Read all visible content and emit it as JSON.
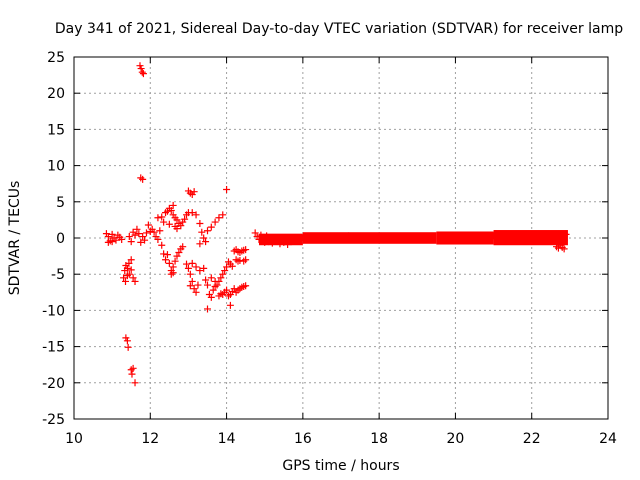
{
  "chart_data": {
    "type": "scatter",
    "title": "Day 341 of 2021, Sidereal Day-to-day VTEC variation (SDTVAR) for receiver lamp",
    "xlabel": "GPS time / hours",
    "ylabel": "SDTVAR / TECUs",
    "xlim": [
      10,
      24
    ],
    "ylim": [
      -25,
      25
    ],
    "xticks": [
      10,
      12,
      14,
      16,
      18,
      20,
      22,
      24
    ],
    "yticks": [
      -25,
      -20,
      -15,
      -10,
      -5,
      0,
      5,
      10,
      15,
      20,
      25
    ],
    "grid": true,
    "marker": "+",
    "color": "#ff0000",
    "series": [
      {
        "name": "SDTVAR",
        "points": [
          [
            10.85,
            0.6
          ],
          [
            10.9,
            0.2
          ],
          [
            10.95,
            -0.4
          ],
          [
            11.0,
            0.5
          ],
          [
            11.05,
            0.0
          ],
          [
            11.1,
            -0.3
          ],
          [
            11.15,
            0.4
          ],
          [
            11.2,
            0.1
          ],
          [
            11.25,
            -0.2
          ],
          [
            10.9,
            -0.6
          ],
          [
            11.0,
            -0.5
          ],
          [
            11.3,
            -5.5
          ],
          [
            11.33,
            -4.5
          ],
          [
            11.36,
            -3.8
          ],
          [
            11.4,
            -4.2
          ],
          [
            11.44,
            -3.5
          ],
          [
            11.35,
            -6.0
          ],
          [
            11.4,
            -5.2
          ],
          [
            11.45,
            -5.0
          ],
          [
            11.5,
            -4.4
          ],
          [
            11.55,
            -5.5
          ],
          [
            11.6,
            -6.0
          ],
          [
            11.5,
            -3.0
          ],
          [
            11.55,
            0.8
          ],
          [
            11.6,
            0.4
          ],
          [
            11.65,
            1.2
          ],
          [
            11.7,
            0.6
          ],
          [
            11.75,
            -0.6
          ],
          [
            11.8,
            0.2
          ],
          [
            11.85,
            -0.3
          ],
          [
            11.9,
            0.7
          ],
          [
            11.45,
            0.2
          ],
          [
            11.5,
            -0.5
          ],
          [
            11.36,
            -13.8
          ],
          [
            11.4,
            -14.2
          ],
          [
            11.42,
            -15.1
          ],
          [
            11.5,
            -18.2
          ],
          [
            11.52,
            -18.8
          ],
          [
            11.55,
            -18.0
          ],
          [
            11.6,
            -20.0
          ],
          [
            11.73,
            23.8
          ],
          [
            11.76,
            23.4
          ],
          [
            11.79,
            22.9
          ],
          [
            11.82,
            22.7
          ],
          [
            11.75,
            8.3
          ],
          [
            11.8,
            8.1
          ],
          [
            11.95,
            1.8
          ],
          [
            12.05,
            1.2
          ],
          [
            12.1,
            0.8
          ],
          [
            12.15,
            0.2
          ],
          [
            12.2,
            -0.2
          ],
          [
            12.25,
            1.0
          ],
          [
            12.0,
            0.9
          ],
          [
            12.2,
            2.8
          ],
          [
            12.3,
            2.9
          ],
          [
            12.35,
            2.2
          ],
          [
            12.4,
            3.5
          ],
          [
            12.45,
            3.7
          ],
          [
            12.5,
            4.1
          ],
          [
            12.55,
            3.8
          ],
          [
            12.6,
            3.2
          ],
          [
            12.65,
            2.8
          ],
          [
            12.7,
            2.5
          ],
          [
            12.75,
            2.0
          ],
          [
            12.8,
            1.7
          ],
          [
            12.85,
            2.2
          ],
          [
            12.9,
            2.6
          ],
          [
            12.95,
            3.2
          ],
          [
            13.0,
            3.5
          ],
          [
            12.6,
            4.5
          ],
          [
            12.65,
            1.6
          ],
          [
            12.7,
            1.3
          ],
          [
            12.5,
            1.9
          ],
          [
            12.3,
            -1.0
          ],
          [
            12.35,
            -2.2
          ],
          [
            12.4,
            -3.0
          ],
          [
            12.45,
            -2.3
          ],
          [
            12.5,
            -3.5
          ],
          [
            12.55,
            -4.5
          ],
          [
            12.6,
            -4.0
          ],
          [
            12.65,
            -3.2
          ],
          [
            12.7,
            -2.5
          ],
          [
            12.75,
            -2.0
          ],
          [
            12.8,
            -1.5
          ],
          [
            12.85,
            -1.2
          ],
          [
            12.55,
            -5.0
          ],
          [
            12.6,
            -4.8
          ],
          [
            12.95,
            -3.6
          ],
          [
            13.0,
            -4.2
          ],
          [
            13.05,
            -5.0
          ],
          [
            13.1,
            -6.0
          ],
          [
            13.15,
            -7.0
          ],
          [
            13.2,
            -7.5
          ],
          [
            13.25,
            -6.5
          ],
          [
            13.3,
            -4.5
          ],
          [
            13.1,
            -3.5
          ],
          [
            13.2,
            -4.0
          ],
          [
            13.05,
            -6.6
          ],
          [
            13.0,
            6.5
          ],
          [
            13.05,
            6.2
          ],
          [
            13.1,
            6.0
          ],
          [
            13.15,
            6.4
          ],
          [
            13.1,
            3.5
          ],
          [
            13.2,
            3.2
          ],
          [
            13.3,
            2.0
          ],
          [
            13.35,
            0.8
          ],
          [
            13.4,
            0.0
          ],
          [
            13.45,
            -0.5
          ],
          [
            13.5,
            1.0
          ],
          [
            13.6,
            1.5
          ],
          [
            13.7,
            2.2
          ],
          [
            13.8,
            2.8
          ],
          [
            13.9,
            3.2
          ],
          [
            13.3,
            -0.8
          ],
          [
            13.4,
            -4.2
          ],
          [
            13.45,
            -5.8
          ],
          [
            13.5,
            -6.5
          ],
          [
            13.55,
            -7.8
          ],
          [
            13.6,
            -8.2
          ],
          [
            13.65,
            -7.2
          ],
          [
            13.7,
            -6.7
          ],
          [
            13.75,
            -6.5
          ],
          [
            13.8,
            -6.0
          ],
          [
            13.85,
            -5.5
          ],
          [
            13.9,
            -5.0
          ],
          [
            13.95,
            -4.5
          ],
          [
            14.0,
            -4.0
          ],
          [
            13.5,
            -9.8
          ],
          [
            13.6,
            -5.5
          ],
          [
            13.7,
            -6.0
          ],
          [
            13.8,
            -8.0
          ],
          [
            13.85,
            -7.7
          ],
          [
            13.9,
            -7.8
          ],
          [
            13.95,
            -7.5
          ],
          [
            14.0,
            -7.2
          ],
          [
            14.05,
            -8.0
          ],
          [
            14.1,
            -7.8
          ],
          [
            14.15,
            -7.4
          ],
          [
            14.2,
            -7.0
          ],
          [
            14.25,
            -7.5
          ],
          [
            14.3,
            -7.2
          ],
          [
            14.35,
            -7.0
          ],
          [
            14.4,
            -6.8
          ],
          [
            14.45,
            -6.7
          ],
          [
            14.5,
            -6.6
          ],
          [
            14.1,
            -9.3
          ],
          [
            14.0,
            6.7
          ],
          [
            14.05,
            -3.3
          ],
          [
            14.1,
            -3.6
          ],
          [
            14.15,
            -3.9
          ],
          [
            14.2,
            -1.8
          ],
          [
            14.25,
            -1.6
          ],
          [
            14.3,
            -1.9
          ],
          [
            14.35,
            -2.0
          ],
          [
            14.4,
            -1.8
          ],
          [
            14.45,
            -1.7
          ],
          [
            14.5,
            -1.6
          ],
          [
            14.25,
            -3.0
          ],
          [
            14.3,
            -3.2
          ],
          [
            14.35,
            -3.1
          ],
          [
            14.45,
            -3.2
          ],
          [
            14.5,
            -3.0
          ],
          [
            14.75,
            0.7
          ],
          [
            14.8,
            0.2
          ],
          [
            14.85,
            -0.2
          ],
          [
            14.9,
            0.4
          ],
          [
            14.95,
            -0.4
          ],
          [
            15.0,
            -0.6
          ],
          [
            15.05,
            0.3
          ],
          [
            15.1,
            -0.5
          ],
          [
            15.2,
            -0.7
          ],
          [
            15.3,
            -0.4
          ],
          [
            15.4,
            -0.8
          ],
          [
            15.5,
            -0.6
          ],
          [
            15.6,
            -0.9
          ],
          [
            15.7,
            -0.5
          ],
          [
            15.8,
            -0.2
          ],
          [
            15.9,
            -0.4
          ],
          [
            16.0,
            0.0
          ],
          [
            16.2,
            -0.1
          ],
          [
            16.4,
            0.2
          ],
          [
            16.6,
            0.1
          ],
          [
            16.8,
            -0.2
          ],
          [
            17.0,
            0.1
          ],
          [
            17.2,
            0.3
          ],
          [
            17.4,
            0.0
          ],
          [
            17.6,
            0.2
          ],
          [
            17.8,
            0.1
          ],
          [
            18.0,
            0.0
          ],
          [
            18.2,
            -0.2
          ],
          [
            18.4,
            0.1
          ],
          [
            18.6,
            0.0
          ],
          [
            18.8,
            -0.1
          ],
          [
            19.0,
            0.1
          ],
          [
            19.2,
            0.0
          ],
          [
            19.4,
            -0.1
          ],
          [
            19.6,
            -0.2
          ],
          [
            19.8,
            0.1
          ],
          [
            20.0,
            0.0
          ],
          [
            20.2,
            0.1
          ],
          [
            20.4,
            0.2
          ],
          [
            20.6,
            0.0
          ],
          [
            20.8,
            0.1
          ],
          [
            21.0,
            0.3
          ],
          [
            21.2,
            0.2
          ],
          [
            21.4,
            0.0
          ],
          [
            21.6,
            -0.1
          ],
          [
            21.8,
            0.2
          ],
          [
            22.0,
            -0.1
          ],
          [
            22.2,
            0.0
          ],
          [
            22.4,
            -0.2
          ],
          [
            22.6,
            0.0
          ],
          [
            22.8,
            0.2
          ],
          [
            22.65,
            -1.2
          ],
          [
            22.7,
            -1.4
          ],
          [
            22.75,
            -1.0
          ],
          [
            22.8,
            -1.3
          ],
          [
            22.85,
            -1.5
          ],
          [
            22.9,
            0.5
          ],
          [
            22.85,
            -0.3
          ]
        ]
      }
    ],
    "dense_bands": [
      {
        "x_start": 14.85,
        "x_end": 16.0,
        "y_low": -1.0,
        "y_high": 0.6
      },
      {
        "x_start": 16.0,
        "x_end": 19.5,
        "y_low": -0.8,
        "y_high": 0.8
      },
      {
        "x_start": 19.5,
        "x_end": 21.0,
        "y_low": -0.9,
        "y_high": 0.9
      },
      {
        "x_start": 21.0,
        "x_end": 22.95,
        "y_low": -1.0,
        "y_high": 1.1
      }
    ]
  }
}
